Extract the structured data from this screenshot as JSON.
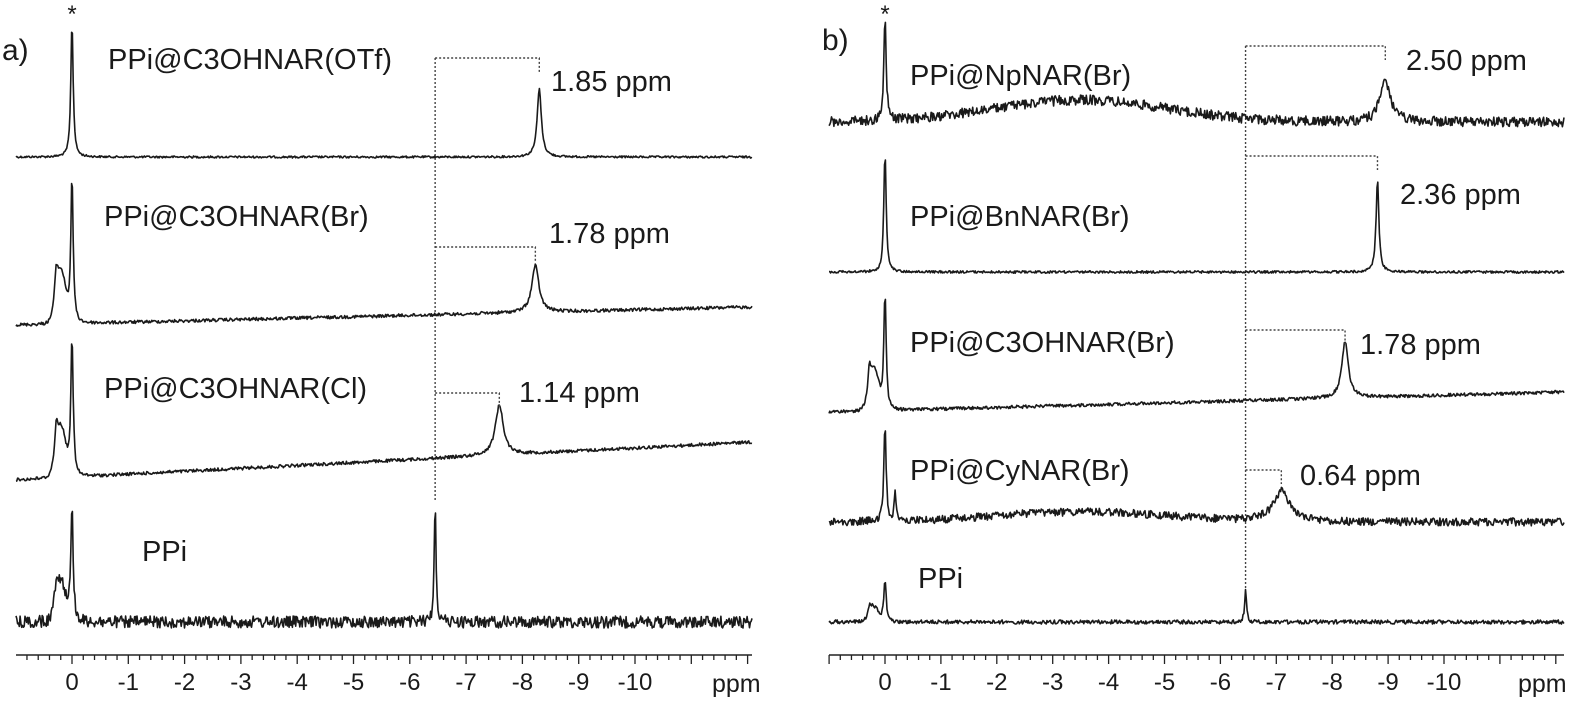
{
  "chart_data": [
    {
      "type": "line",
      "panel_label": "a)",
      "xlabel": "ppm",
      "xlim": [
        1.0,
        -11.2
      ],
      "x_ticks": [
        0,
        -1,
        -2,
        -3,
        -4,
        -5,
        -6,
        -7,
        -8,
        -9,
        -10
      ],
      "x_tick_labels": [
        "0",
        "-1",
        "-2",
        "-3",
        "-4",
        "-5",
        "-6",
        "-7",
        "-8",
        "-9",
        "-10"
      ],
      "reference_marker": "*",
      "reference_ppm": 0,
      "free_ppi_ppm": -6.45,
      "series": [
        {
          "name": "PPi@C3OHNAR(OTf)",
          "reference_ppm": 0,
          "peak_ppm": -8.3,
          "shift_label": "1.85 ppm"
        },
        {
          "name": "PPi@C3OHNAR(Br)",
          "reference_ppm": 0,
          "peak_ppm": -8.23,
          "shift_label": "1.78 ppm"
        },
        {
          "name": "PPi@C3OHNAR(Cl)",
          "reference_ppm": 0,
          "peak_ppm": -7.59,
          "shift_label": "1.14 ppm"
        },
        {
          "name": "PPi",
          "reference_ppm": 0,
          "peak_ppm": -6.45,
          "shift_label": ""
        }
      ]
    },
    {
      "type": "line",
      "panel_label": "b)",
      "xlabel": "ppm",
      "xlim": [
        1.0,
        -11.2
      ],
      "x_ticks": [
        0,
        -1,
        -2,
        -3,
        -4,
        -5,
        -6,
        -7,
        -8,
        -9,
        -10
      ],
      "x_tick_labels": [
        "0",
        "-1",
        "-2",
        "-3",
        "-4",
        "-5",
        "-6",
        "-7",
        "-8",
        "-9",
        "-10"
      ],
      "reference_marker": "*",
      "reference_ppm": 0,
      "free_ppi_ppm": -6.45,
      "series": [
        {
          "name": "PPi@NpNAR(Br)",
          "reference_ppm": 0,
          "peak_ppm": -8.95,
          "shift_label": "2.50 ppm"
        },
        {
          "name": "PPi@BnNAR(Br)",
          "reference_ppm": 0,
          "peak_ppm": -8.81,
          "shift_label": "2.36 ppm"
        },
        {
          "name": "PPi@C3OHNAR(Br)",
          "reference_ppm": 0,
          "peak_ppm": -8.23,
          "shift_label": "1.78 ppm"
        },
        {
          "name": "PPi@CyNAR(Br)",
          "reference_ppm": 0,
          "peak_ppm": -7.09,
          "shift_label": "0.64 ppm"
        },
        {
          "name": "PPi",
          "reference_ppm": 0,
          "peak_ppm": -6.45,
          "shift_label": ""
        }
      ]
    }
  ]
}
